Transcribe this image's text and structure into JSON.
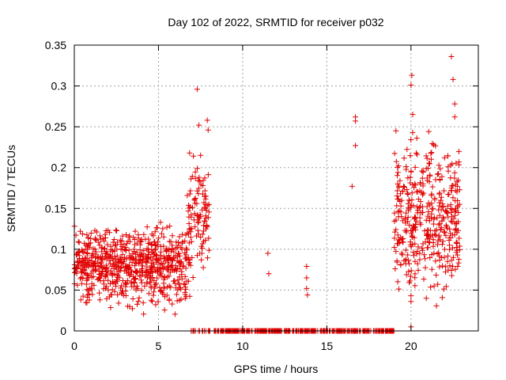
{
  "chart_data": {
    "type": "scatter",
    "title": "Day 102 of 2022, SRMTID for receiver p032",
    "xlabel": "GPS time / hours",
    "ylabel": "SRMTID / TECUs",
    "xlim": [
      0,
      24
    ],
    "ylim": [
      0,
      0.35
    ],
    "xticks": [
      0,
      5,
      10,
      15,
      20
    ],
    "xtick_labels": [
      "0",
      "5",
      "10",
      "15",
      "20"
    ],
    "yticks": [
      0,
      0.05,
      0.1,
      0.15,
      0.2,
      0.25,
      0.3,
      0.35
    ],
    "ytick_labels": [
      "0",
      "0.05",
      "0.1",
      "0.15",
      "0.2",
      "0.25",
      "0.3",
      "0.35"
    ],
    "grid": true,
    "marker": "+",
    "color": "#e00000",
    "series": [
      {
        "name": "SRMTID",
        "segments": [
          {
            "x_range": [
              0.0,
              6.7
            ],
            "mean": 0.08,
            "spread": 0.03,
            "count": 700
          },
          {
            "x_range": [
              6.7,
              8.0
            ],
            "mean": 0.14,
            "spread": 0.05,
            "count": 110
          },
          {
            "x_range": [
              19.0,
              22.9
            ],
            "mean": 0.14,
            "spread": 0.06,
            "count": 420
          },
          {
            "x_range": [
              6.9,
              8.1
            ],
            "value": 0,
            "count": 20
          },
          {
            "x_range": [
              8.3,
              19.0
            ],
            "value": 0,
            "count": 380
          }
        ],
        "points": [
          [
            7.3,
            0.296
          ],
          [
            7.4,
            0.252
          ],
          [
            7.9,
            0.258
          ],
          [
            7.95,
            0.246
          ],
          [
            7.5,
            0.215
          ],
          [
            11.5,
            0.095
          ],
          [
            11.55,
            0.07
          ],
          [
            13.8,
            0.079
          ],
          [
            13.8,
            0.065
          ],
          [
            13.8,
            0.052
          ],
          [
            13.85,
            0.044
          ],
          [
            16.5,
            0.177
          ],
          [
            16.7,
            0.262
          ],
          [
            16.7,
            0.257
          ],
          [
            16.7,
            0.227
          ],
          [
            20.0,
            0.301
          ],
          [
            20.05,
            0.313
          ],
          [
            20.1,
            0.265
          ],
          [
            20.1,
            0.243
          ],
          [
            22.4,
            0.336
          ],
          [
            22.5,
            0.308
          ],
          [
            22.6,
            0.278
          ],
          [
            22.6,
            0.262
          ],
          [
            20.0,
            0.005
          ],
          [
            20.0,
            0.036
          ],
          [
            20.0,
            0.043
          ]
        ]
      }
    ]
  }
}
